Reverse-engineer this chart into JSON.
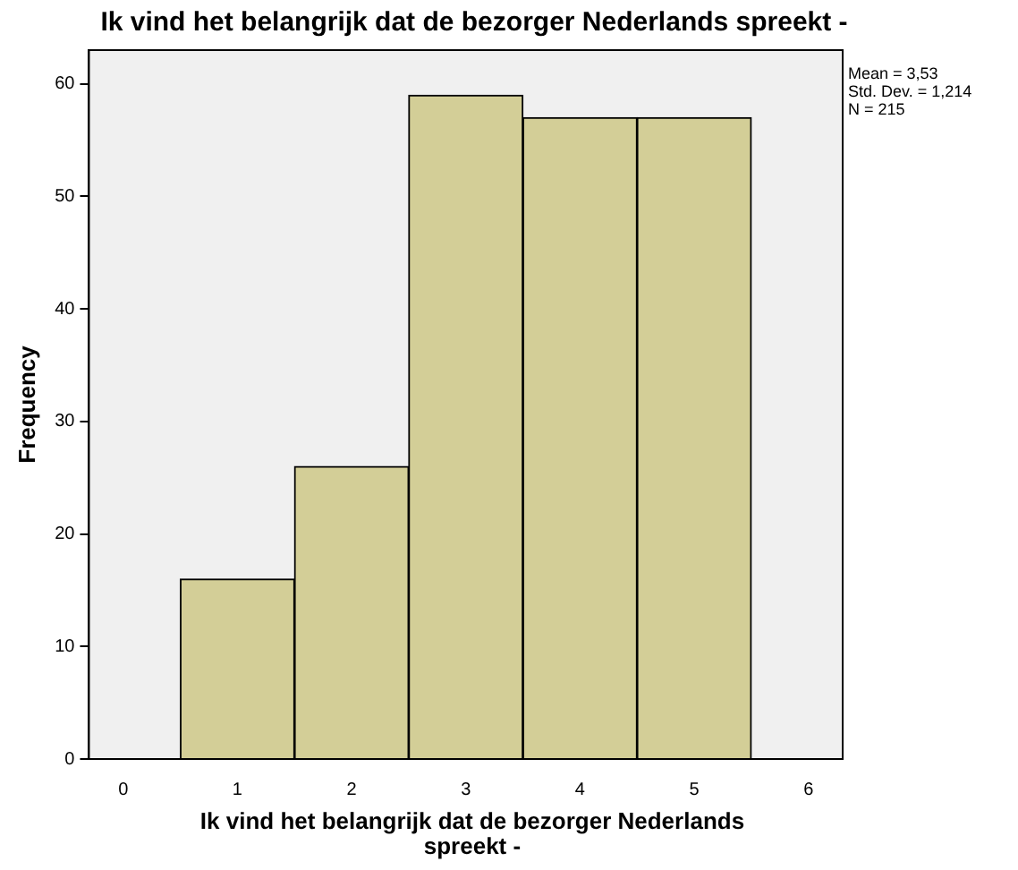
{
  "chart_data": {
    "type": "histogram",
    "title": "Ik vind het belangrijk dat de bezorger Nederlands spreekt -",
    "xlabel": "Ik vind het belangrijk dat de bezorger Nederlands spreekt -",
    "ylabel": "Frequency",
    "bins": [
      0.5,
      1.5,
      2.5,
      3.5,
      4.5,
      5.5
    ],
    "values": [
      16,
      26,
      59,
      57,
      57
    ],
    "color": "#d3ce97",
    "xlim": [
      -0.3,
      6.3
    ],
    "xticks": [
      0,
      1,
      2,
      3,
      4,
      5,
      6
    ],
    "ylim": [
      0,
      63
    ],
    "yticks": [
      0,
      10,
      20,
      30,
      40,
      50,
      60
    ],
    "grid": false,
    "legend": false,
    "annotations": [
      "Mean = 3,53",
      "Std. Dev. = 1,214",
      "N = 215"
    ]
  }
}
